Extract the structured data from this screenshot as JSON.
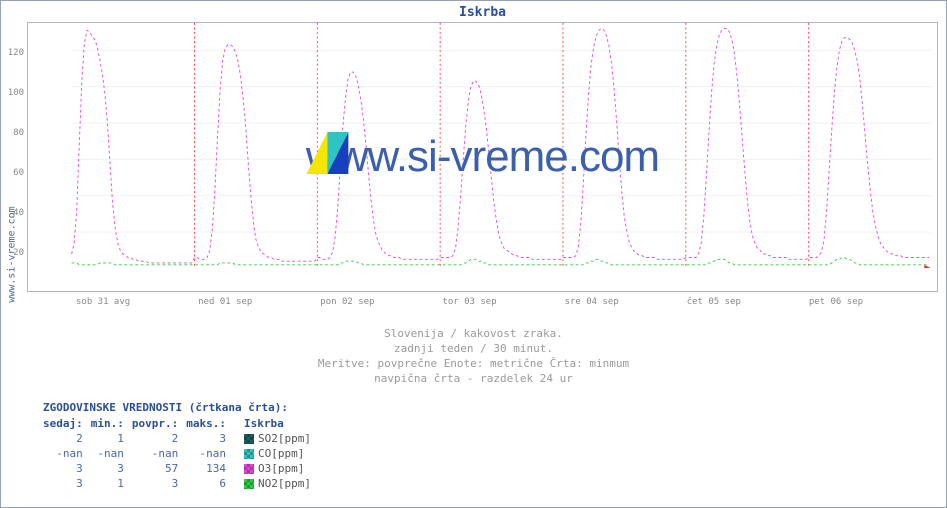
{
  "title": "Iskrba",
  "site_label": "www.si-vreme.com",
  "watermark_text": "www.si-vreme.com",
  "caption_lines": [
    "Slovenija / kakovost zraka.",
    "zadnji teden / 30 minut.",
    "Meritve: povprečne  Enote: metrične  Črta: minmum",
    "navpična črta - razdelek 24 ur"
  ],
  "chart": {
    "type": "line",
    "background_color": "#ffffff",
    "border_color": "#b0b4c4",
    "grid_color": "#f0f0f4",
    "day_boundary_color": "#ff3030",
    "day_boundary_dash": "2,3",
    "ylim": [
      0,
      135
    ],
    "yticks": [
      20,
      40,
      60,
      80,
      100,
      120
    ],
    "x_categories": [
      "sob 31 avg",
      "ned 01 sep",
      "pon 02 sep",
      "tor 03 sep",
      "sre 04 sep",
      "čet 05 sep",
      "pet 06 sep"
    ],
    "x_samples_per_day": 48,
    "line_dash": "3,3",
    "line_width": 1,
    "series": [
      {
        "name": "SO2[ppm]",
        "color": "#1d5f5f",
        "visible": false
      },
      {
        "name": "CO[ppm]",
        "color": "#2ec4c4",
        "visible": false
      },
      {
        "name": "O3[ppm]",
        "color": "#e444d6",
        "days": [
          [
            8,
            14,
            32,
            68,
            104,
            124,
            131,
            130,
            128,
            126,
            122,
            115,
            107,
            96,
            80,
            58,
            36,
            22,
            14,
            10,
            8,
            7,
            6,
            6,
            5,
            5,
            4,
            4,
            4,
            4,
            3,
            3,
            3,
            3,
            3,
            3,
            3,
            3,
            3,
            3,
            3,
            3,
            3,
            3,
            3,
            3,
            3,
            3
          ],
          [
            6,
            6,
            5,
            5,
            5,
            6,
            10,
            22,
            44,
            72,
            98,
            114,
            121,
            123,
            123,
            122,
            119,
            114,
            106,
            94,
            78,
            58,
            40,
            26,
            16,
            12,
            9,
            8,
            7,
            6,
            6,
            5,
            5,
            5,
            4,
            4,
            4,
            4,
            4,
            4,
            4,
            4,
            4,
            4,
            4,
            4,
            4,
            4
          ],
          [
            6,
            6,
            5,
            5,
            5,
            6,
            9,
            18,
            34,
            56,
            78,
            94,
            104,
            108,
            108,
            106,
            101,
            93,
            82,
            68,
            52,
            38,
            26,
            18,
            14,
            11,
            9,
            8,
            7,
            7,
            6,
            6,
            6,
            5,
            5,
            5,
            5,
            5,
            5,
            5,
            5,
            5,
            5,
            5,
            5,
            5,
            5,
            5
          ],
          [
            6,
            6,
            6,
            6,
            6,
            7,
            11,
            22,
            40,
            60,
            78,
            92,
            100,
            103,
            103,
            101,
            96,
            88,
            78,
            64,
            50,
            36,
            26,
            18,
            14,
            11,
            10,
            9,
            8,
            7,
            7,
            6,
            6,
            6,
            6,
            6,
            5,
            5,
            5,
            5,
            5,
            5,
            5,
            5,
            5,
            5,
            5,
            5
          ],
          [
            6,
            6,
            6,
            6,
            6,
            7,
            12,
            26,
            48,
            74,
            96,
            112,
            122,
            128,
            131,
            132,
            131,
            128,
            122,
            112,
            98,
            80,
            60,
            42,
            28,
            20,
            14,
            11,
            9,
            8,
            7,
            7,
            6,
            6,
            6,
            6,
            6,
            5,
            5,
            5,
            5,
            5,
            5,
            5,
            5,
            5,
            5,
            5
          ],
          [
            6,
            6,
            6,
            6,
            6,
            8,
            14,
            28,
            50,
            74,
            96,
            112,
            122,
            128,
            131,
            132,
            132,
            130,
            126,
            118,
            106,
            90,
            72,
            54,
            38,
            26,
            18,
            14,
            11,
            10,
            8,
            8,
            7,
            7,
            6,
            6,
            6,
            6,
            6,
            6,
            5,
            5,
            5,
            5,
            5,
            5,
            5,
            5
          ],
          [
            6,
            6,
            6,
            6,
            7,
            9,
            16,
            32,
            54,
            76,
            96,
            110,
            120,
            125,
            127,
            127,
            126,
            124,
            120,
            114,
            104,
            90,
            74,
            58,
            44,
            32,
            24,
            18,
            14,
            12,
            10,
            9,
            8,
            8,
            7,
            7,
            7,
            6,
            6,
            6,
            6,
            6,
            6,
            6,
            6,
            6,
            6,
            6
          ]
        ]
      },
      {
        "name": "NO2[ppm]",
        "color": "#2ecc40",
        "days": [
          [
            3,
            3,
            3,
            2,
            2,
            2,
            2,
            2,
            2,
            2,
            2,
            3,
            3,
            3,
            3,
            3,
            3,
            2,
            2,
            2,
            2,
            2,
            2,
            2,
            2,
            2,
            2,
            2,
            2,
            2,
            2,
            2,
            2,
            2,
            2,
            2,
            2,
            2,
            2,
            2,
            2,
            2,
            2,
            2,
            2,
            2,
            2,
            2
          ],
          [
            2,
            2,
            2,
            2,
            2,
            2,
            2,
            2,
            2,
            2,
            3,
            3,
            3,
            3,
            3,
            3,
            2,
            2,
            2,
            2,
            2,
            2,
            2,
            2,
            2,
            2,
            2,
            2,
            2,
            2,
            2,
            2,
            2,
            2,
            2,
            2,
            2,
            2,
            2,
            2,
            2,
            2,
            2,
            2,
            2,
            2,
            2,
            2
          ],
          [
            2,
            2,
            2,
            2,
            2,
            2,
            2,
            2,
            2,
            3,
            3,
            4,
            4,
            4,
            4,
            4,
            3,
            3,
            2,
            2,
            2,
            2,
            2,
            2,
            2,
            2,
            2,
            2,
            2,
            2,
            2,
            2,
            2,
            2,
            2,
            2,
            2,
            2,
            2,
            2,
            2,
            2,
            2,
            2,
            2,
            2,
            2,
            2
          ],
          [
            2,
            2,
            2,
            2,
            2,
            2,
            2,
            2,
            2,
            3,
            3,
            4,
            5,
            5,
            5,
            4,
            4,
            3,
            3,
            2,
            2,
            2,
            2,
            2,
            2,
            2,
            2,
            2,
            2,
            2,
            2,
            2,
            2,
            2,
            2,
            2,
            2,
            2,
            2,
            2,
            2,
            2,
            2,
            2,
            2,
            2,
            2,
            2
          ],
          [
            2,
            2,
            2,
            2,
            2,
            2,
            2,
            2,
            2,
            3,
            3,
            4,
            4,
            5,
            5,
            4,
            4,
            3,
            3,
            2,
            2,
            2,
            2,
            2,
            2,
            2,
            2,
            2,
            2,
            2,
            2,
            2,
            2,
            2,
            2,
            2,
            2,
            2,
            2,
            2,
            2,
            2,
            2,
            2,
            2,
            2,
            2,
            2
          ],
          [
            2,
            2,
            2,
            2,
            2,
            2,
            2,
            2,
            2,
            3,
            3,
            4,
            5,
            5,
            5,
            5,
            4,
            3,
            3,
            2,
            2,
            2,
            2,
            2,
            2,
            2,
            2,
            2,
            2,
            2,
            2,
            2,
            2,
            2,
            2,
            2,
            2,
            2,
            2,
            2,
            2,
            2,
            2,
            2,
            2,
            2,
            2,
            2
          ],
          [
            2,
            2,
            2,
            2,
            2,
            2,
            2,
            2,
            2,
            3,
            4,
            5,
            5,
            6,
            6,
            5,
            5,
            4,
            3,
            3,
            2,
            2,
            2,
            2,
            2,
            2,
            2,
            2,
            2,
            2,
            2,
            2,
            2,
            2,
            2,
            2,
            2,
            2,
            2,
            2,
            2,
            2,
            2,
            2,
            2,
            2,
            2,
            2
          ]
        ]
      }
    ]
  },
  "history": {
    "title": "ZGODOVINSKE VREDNOSTI (črtkana črta):",
    "columns": [
      "sedaj:",
      "min.:",
      "povpr.:",
      "maks.:"
    ],
    "location_col": "Iskrba",
    "rows": [
      {
        "sw": "#1d5f5f",
        "label": "SO2[ppm]",
        "v": [
          "2",
          "1",
          "2",
          "3"
        ]
      },
      {
        "sw": "#2ec4c4",
        "label": "CO[ppm]",
        "v": [
          "-nan",
          "-nan",
          "-nan",
          "-nan"
        ]
      },
      {
        "sw": "#e444d6",
        "label": "O3[ppm]",
        "v": [
          "3",
          "3",
          "57",
          "134"
        ]
      },
      {
        "sw": "#2ecc40",
        "label": "NO2[ppm]",
        "v": [
          "3",
          "1",
          "3",
          "6"
        ]
      }
    ]
  },
  "logo": {
    "tri1": "#f5e600",
    "tri2": "#2ec4c4",
    "tri3": "#1740c0"
  }
}
